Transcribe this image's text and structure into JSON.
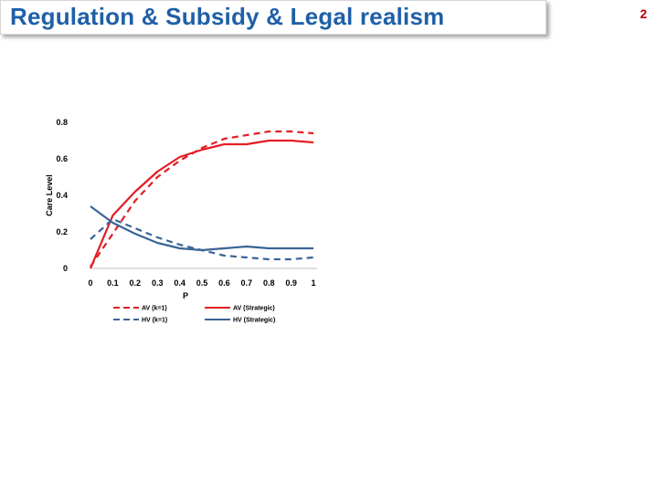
{
  "slide": {
    "title": "Regulation & Subsidy & Legal realism",
    "page_number": "2"
  },
  "chart_data": {
    "type": "line",
    "xlabel": "P",
    "ylabel": "Care Level",
    "x": [
      0,
      0.1,
      0.2,
      0.3,
      0.4,
      0.5,
      0.6,
      0.7,
      0.8,
      0.9,
      1
    ],
    "x_tick_labels": [
      "0",
      "0.1",
      "0.2",
      "0.3",
      "0.4",
      "0.5",
      "0.6",
      "0.7",
      "0.8",
      "0.9",
      "1"
    ],
    "y_ticks": [
      0,
      0.2,
      0.4,
      0.6,
      0.8
    ],
    "y_tick_labels": [
      "0",
      "0.2",
      "0.4",
      "0.6",
      "0.8"
    ],
    "ylim": [
      0,
      0.8
    ],
    "xlim": [
      0,
      1
    ],
    "grid": false,
    "legend_position": "bottom",
    "series": [
      {
        "name": "AV (k=1)",
        "color": "#e31e24",
        "dash": "dashed",
        "values": [
          0.01,
          0.19,
          0.37,
          0.5,
          0.59,
          0.66,
          0.71,
          0.73,
          0.75,
          0.75,
          0.74
        ]
      },
      {
        "name": "AV (Strategic)",
        "color": "#e31e24",
        "dash": "solid",
        "values": [
          0.0,
          0.29,
          0.42,
          0.53,
          0.61,
          0.65,
          0.68,
          0.68,
          0.7,
          0.7,
          0.69
        ]
      },
      {
        "name": "HV (k=1)",
        "color": "#3a6496",
        "dash": "dashed",
        "values": [
          0.16,
          0.27,
          0.22,
          0.17,
          0.13,
          0.1,
          0.07,
          0.06,
          0.05,
          0.05,
          0.06
        ]
      },
      {
        "name": "HV (Strategic)",
        "color": "#3a6496",
        "dash": "solid",
        "values": [
          0.34,
          0.25,
          0.19,
          0.14,
          0.11,
          0.1,
          0.11,
          0.12,
          0.11,
          0.11,
          0.11
        ]
      }
    ]
  }
}
